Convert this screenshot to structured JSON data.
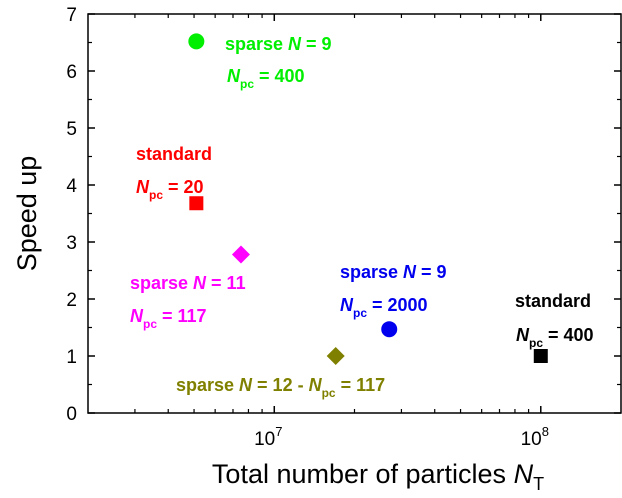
{
  "chart_data": {
    "type": "scatter",
    "xlabel": "Total number of particles ",
    "xlabel_symbol": "N",
    "xlabel_subscript": "T",
    "ylabel": "Speed up",
    "x_scale": "log",
    "xlim": [
      2000000,
      200000000
    ],
    "ylim": [
      0,
      7
    ],
    "y_ticks": [
      "0",
      "1",
      "2",
      "3",
      "4",
      "5",
      "6",
      "7"
    ],
    "x_tick_labels": [
      {
        "value": 10000000,
        "base": "10",
        "exp": "7"
      },
      {
        "value": 100000000,
        "base": "10",
        "exp": "8"
      }
    ],
    "grid": false,
    "points": [
      {
        "x": 5100000,
        "y": 6.52,
        "marker": "circle",
        "color": "#00ee00",
        "label": [
          "sparse ",
          "N",
          " = 9"
        ],
        "label2": [
          "N",
          "pc",
          " = 400"
        ]
      },
      {
        "x": 5100000,
        "y": 3.68,
        "marker": "square",
        "color": "#ff0000",
        "label": [
          "standard"
        ],
        "label2": [
          "N",
          "pc",
          " = 20"
        ]
      },
      {
        "x": 7500000,
        "y": 2.78,
        "marker": "diamond",
        "color": "#ff00ff",
        "label": [
          "sparse ",
          "N",
          " = 11"
        ],
        "label2": [
          "N",
          "pc",
          " = 117"
        ]
      },
      {
        "x": 27000000,
        "y": 1.47,
        "marker": "circle",
        "color": "#0000ee",
        "label": [
          "sparse ",
          "N",
          " = 9"
        ],
        "label2": [
          "N",
          "pc",
          " = 2000"
        ]
      },
      {
        "x": 100000000,
        "y": 1.0,
        "marker": "square",
        "color": "#000000",
        "label": [
          "standard"
        ],
        "label2": [
          "N",
          "pc",
          " = 400"
        ]
      },
      {
        "x": 17000000,
        "y": 1.0,
        "marker": "diamond",
        "color": "#808000",
        "label": [
          "sparse ",
          "N",
          " = 12 - ",
          "N",
          "pc",
          " = 117"
        ],
        "label2": []
      }
    ]
  }
}
